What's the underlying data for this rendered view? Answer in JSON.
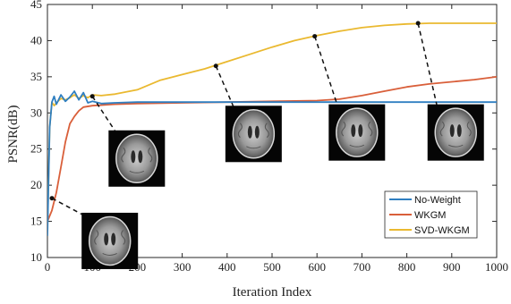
{
  "chart_data": {
    "type": "line",
    "xlabel": "Iteration Index",
    "ylabel": "PSNR(dB)",
    "xlim": [
      0,
      1000
    ],
    "ylim": [
      10,
      45
    ],
    "xticks": [
      0,
      100,
      200,
      300,
      400,
      500,
      600,
      700,
      800,
      900,
      1000
    ],
    "yticks": [
      10,
      15,
      20,
      25,
      30,
      35,
      40,
      45
    ],
    "grid": false,
    "legend_position": "bottom-right",
    "series": [
      {
        "name": "No-Weight",
        "color": "#2f7fc1",
        "x": [
          0,
          5,
          10,
          15,
          20,
          30,
          40,
          50,
          60,
          70,
          80,
          90,
          100,
          120,
          150,
          200,
          300,
          500,
          700,
          1000
        ],
        "y": [
          13,
          28,
          31.5,
          32.3,
          31.2,
          32.5,
          31.6,
          32.2,
          33.0,
          31.8,
          32.8,
          31.4,
          31.6,
          31.3,
          31.4,
          31.5,
          31.5,
          31.5,
          31.5,
          31.5
        ]
      },
      {
        "name": "WKGM",
        "color": "#d95f3a",
        "x": [
          0,
          10,
          20,
          30,
          40,
          50,
          60,
          70,
          80,
          100,
          150,
          200,
          300,
          400,
          500,
          600,
          650,
          700,
          750,
          800,
          850,
          900,
          950,
          1000
        ],
        "y": [
          15,
          16.5,
          19,
          22.5,
          26,
          28.5,
          29.5,
          30.3,
          30.8,
          31.0,
          31.2,
          31.3,
          31.4,
          31.5,
          31.6,
          31.7,
          31.9,
          32.4,
          33.0,
          33.6,
          34.0,
          34.3,
          34.6,
          35.0
        ]
      },
      {
        "name": "SVD-WKGM",
        "color": "#eab930",
        "x": [
          0,
          5,
          10,
          15,
          20,
          30,
          40,
          50,
          60,
          70,
          80,
          90,
          100,
          120,
          150,
          200,
          250,
          300,
          350,
          400,
          450,
          500,
          550,
          600,
          650,
          700,
          750,
          800,
          850,
          900,
          950,
          1000
        ],
        "y": [
          14,
          28,
          31.5,
          31.0,
          31.4,
          32.0,
          31.8,
          32.1,
          32.5,
          32.0,
          32.4,
          32.1,
          32.5,
          32.4,
          32.6,
          33.2,
          34.5,
          35.3,
          36.1,
          37.1,
          38.1,
          39.1,
          40.0,
          40.7,
          41.3,
          41.8,
          42.1,
          42.3,
          42.4,
          42.4,
          42.4,
          42.4
        ]
      }
    ],
    "annotations": [
      {
        "label": "brain-scan-iter-10",
        "x": 10,
        "y": 18.2,
        "scan_anchor_x": 100,
        "scan_anchor_y": 15.2
      },
      {
        "label": "brain-scan-iter-100",
        "x": 100,
        "y": 32.3,
        "scan_anchor_x": 160,
        "scan_anchor_y": 26.6
      },
      {
        "label": "brain-scan-iter-375",
        "x": 375,
        "y": 36.5,
        "scan_anchor_x": 420,
        "scan_anchor_y": 30.0
      },
      {
        "label": "brain-scan-iter-595",
        "x": 595,
        "y": 40.6,
        "scan_anchor_x": 650,
        "scan_anchor_y": 30.2
      },
      {
        "label": "brain-scan-iter-825",
        "x": 825,
        "y": 42.4,
        "scan_anchor_x": 870,
        "scan_anchor_y": 30.2
      }
    ]
  }
}
